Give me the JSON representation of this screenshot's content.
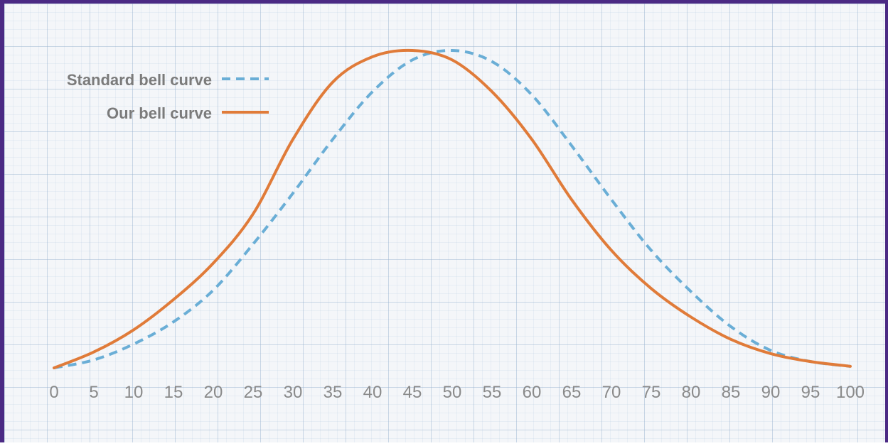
{
  "chart_data": {
    "type": "line",
    "title": "",
    "xlabel": "",
    "ylabel": "",
    "x_ticks": [
      "0",
      "5",
      "10",
      "15",
      "20",
      "25",
      "30",
      "35",
      "40",
      "45",
      "50",
      "55",
      "60",
      "65",
      "70",
      "75",
      "80",
      "85",
      "90",
      "95",
      "100"
    ],
    "xlim": [
      0,
      100
    ],
    "ylim": [
      0,
      1
    ],
    "grid": true,
    "legend_position": "top-left",
    "x": [
      0,
      5,
      10,
      15,
      20,
      25,
      30,
      35,
      40,
      45,
      50,
      55,
      60,
      65,
      70,
      75,
      80,
      85,
      90,
      95,
      100
    ],
    "series": [
      {
        "name": "Standard bell curve",
        "style": "dashed",
        "color": "#6aaed6",
        "values": [
          0.0,
          0.025,
          0.075,
          0.145,
          0.245,
          0.39,
          0.55,
          0.72,
          0.87,
          0.97,
          1.0,
          0.965,
          0.86,
          0.7,
          0.53,
          0.37,
          0.24,
          0.13,
          0.055,
          0.02,
          0.005
        ]
      },
      {
        "name": "Our bell curve",
        "style": "solid",
        "color": "#e07b39",
        "values": [
          0.0,
          0.05,
          0.12,
          0.215,
          0.33,
          0.485,
          0.72,
          0.9,
          0.98,
          1.0,
          0.97,
          0.87,
          0.72,
          0.53,
          0.37,
          0.25,
          0.16,
          0.09,
          0.045,
          0.02,
          0.005
        ]
      }
    ]
  }
}
